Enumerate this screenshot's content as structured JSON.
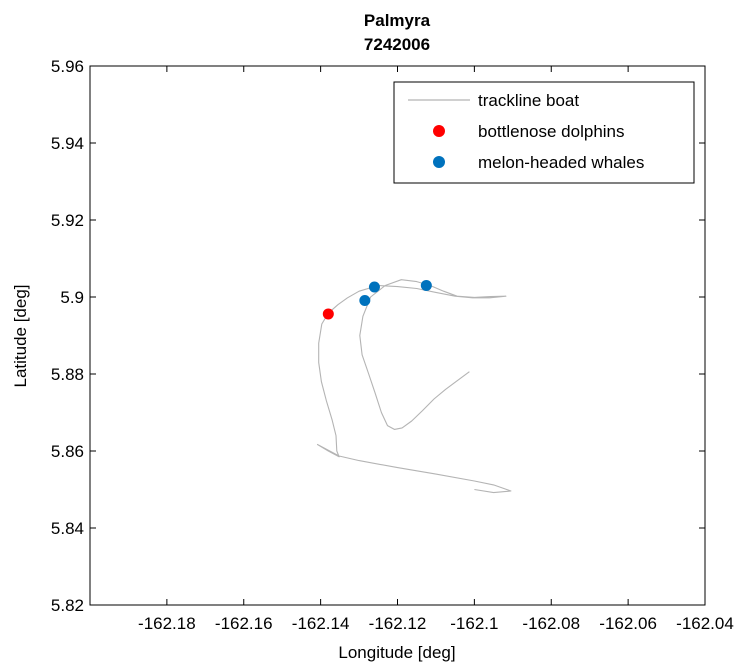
{
  "chart_data": {
    "type": "scatter",
    "title": "Palmyra",
    "subtitle": "7242006",
    "xlabel": "Longitude [deg]",
    "ylabel": "Latitude [deg]",
    "xlim": [
      -162.2,
      -162.04
    ],
    "ylim": [
      5.82,
      5.96
    ],
    "xticks": [
      -162.18,
      -162.16,
      -162.14,
      -162.12,
      -162.1,
      -162.08,
      -162.06,
      -162.04
    ],
    "xtick_labels": [
      "-162.18",
      "-162.16",
      "-162.14",
      "-162.12",
      "-162.1",
      "-162.08",
      "-162.06",
      "-162.04"
    ],
    "yticks": [
      5.82,
      5.84,
      5.86,
      5.88,
      5.9,
      5.92,
      5.94,
      5.96
    ],
    "ytick_labels": [
      "5.82",
      "5.84",
      "5.86",
      "5.88",
      "5.9",
      "5.92",
      "5.94",
      "5.96"
    ],
    "grid": false,
    "legend_position": "top-right",
    "series": [
      {
        "name": "trackline boat",
        "kind": "line",
        "color": "#b4b4b4",
        "points": [
          [
            -162.1013,
            5.8806
          ],
          [
            -162.1048,
            5.878
          ],
          [
            -162.1075,
            5.876
          ],
          [
            -162.1105,
            5.8735
          ],
          [
            -162.1135,
            5.8705
          ],
          [
            -162.1163,
            5.8678
          ],
          [
            -162.1188,
            5.866
          ],
          [
            -162.1208,
            5.8656
          ],
          [
            -162.1226,
            5.8666
          ],
          [
            -162.1242,
            5.87
          ],
          [
            -162.1258,
            5.875
          ],
          [
            -162.1275,
            5.88
          ],
          [
            -162.1292,
            5.885
          ],
          [
            -162.1298,
            5.89
          ],
          [
            -162.129,
            5.895
          ],
          [
            -162.127,
            5.9
          ],
          [
            -162.1232,
            5.903
          ],
          [
            -162.119,
            5.9045
          ],
          [
            -162.115,
            5.904
          ],
          [
            -162.1115,
            5.903
          ],
          [
            -162.108,
            5.9015
          ],
          [
            -162.1045,
            5.9002
          ],
          [
            -162.1,
            5.8999
          ],
          [
            -162.0958,
            5.9001
          ],
          [
            -162.0918,
            5.9002
          ],
          [
            -162.096,
            5.8998
          ],
          [
            -162.1005,
            5.8998
          ],
          [
            -162.105,
            5.9002
          ],
          [
            -162.11,
            5.9012
          ],
          [
            -162.115,
            5.9022
          ],
          [
            -162.12,
            5.9027
          ],
          [
            -162.125,
            5.903
          ],
          [
            -162.13,
            5.9015
          ],
          [
            -162.133,
            5.8998
          ],
          [
            -162.1355,
            5.898
          ],
          [
            -162.138,
            5.8958
          ],
          [
            -162.1397,
            5.893
          ],
          [
            -162.1405,
            5.888
          ],
          [
            -162.1405,
            5.883
          ],
          [
            -162.1398,
            5.878
          ],
          [
            -162.1385,
            5.873
          ],
          [
            -162.137,
            5.868
          ],
          [
            -162.136,
            5.864
          ],
          [
            -162.1358,
            5.86
          ],
          [
            -162.1352,
            5.8585
          ],
          [
            -162.138,
            5.86
          ],
          [
            -162.1408,
            5.8617
          ],
          [
            -162.1352,
            5.8587
          ],
          [
            -162.13,
            5.8575
          ],
          [
            -162.12,
            5.8557
          ],
          [
            -162.11,
            5.854
          ],
          [
            -162.1,
            5.8522
          ],
          [
            -162.095,
            5.8512
          ],
          [
            -162.0905,
            5.8496
          ],
          [
            -162.095,
            5.8492
          ],
          [
            -162.1,
            5.85
          ]
        ]
      },
      {
        "name": "bottlenose dolphins",
        "kind": "scatter",
        "color": "#ff0000",
        "points": [
          [
            -162.138,
            5.8956
          ]
        ]
      },
      {
        "name": "melon-headed whales",
        "kind": "scatter",
        "color": "#0072bd",
        "points": [
          [
            -162.1285,
            5.8991
          ],
          [
            -162.126,
            5.9026
          ],
          [
            -162.1125,
            5.903
          ]
        ]
      }
    ]
  }
}
